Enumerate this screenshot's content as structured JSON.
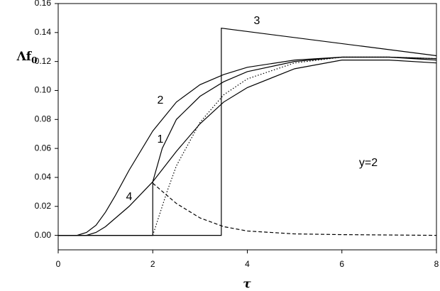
{
  "chart_data": {
    "type": "line",
    "xlabel": "τ",
    "ylabel": "Λf",
    "ylabel_sub": "0",
    "annotation": "y=2",
    "xlim": [
      0,
      8
    ],
    "ylim": [
      -0.01,
      0.16
    ],
    "xticks": [
      0,
      2,
      4,
      6,
      8
    ],
    "yticks": [
      {
        "value": 0,
        "label": "0.00"
      },
      {
        "value": 0.02,
        "label": "0.02"
      },
      {
        "value": 0.04,
        "label": "0.04"
      },
      {
        "value": 0.06,
        "label": "0.06"
      },
      {
        "value": 0.08,
        "label": "0.08"
      },
      {
        "value": 0.1,
        "label": "0.10"
      },
      {
        "value": 0.12,
        "label": "0.12"
      },
      {
        "value": 0.14,
        "label": "0.14"
      },
      {
        "value": 0.16,
        "label": "0.16"
      }
    ],
    "series": [
      {
        "name": "1",
        "color": "#000000",
        "dash": "solid",
        "x": [
          0,
          2,
          2,
          2.2,
          2.5,
          3,
          3.5,
          4,
          5,
          6,
          7,
          8
        ],
        "values": [
          0,
          0,
          0.037,
          0.06,
          0.08,
          0.096,
          0.106,
          0.113,
          0.12,
          0.123,
          0.123,
          0.122
        ]
      },
      {
        "name": "2",
        "color": "#000000",
        "dash": "solid",
        "x": [
          0,
          0.4,
          0.6,
          0.8,
          1.0,
          1.2,
          1.5,
          2,
          2.5,
          3,
          3.5,
          4,
          5,
          6,
          7,
          8
        ],
        "values": [
          0,
          0,
          0.002,
          0.007,
          0.016,
          0.027,
          0.045,
          0.072,
          0.092,
          0.104,
          0.111,
          0.116,
          0.121,
          0.123,
          0.123,
          0.121
        ]
      },
      {
        "name": "3",
        "color": "#000000",
        "dash": "solid",
        "x": [
          0,
          3.45,
          3.45,
          8
        ],
        "values": [
          0,
          0,
          0.143,
          0.124
        ]
      },
      {
        "name": "4",
        "color": "#000000",
        "dash": "solid",
        "x": [
          0,
          0.6,
          0.8,
          1.0,
          1.5,
          2,
          2.5,
          3,
          3.5,
          4,
          5,
          6,
          7,
          8
        ],
        "values": [
          0,
          0,
          0.002,
          0.006,
          0.02,
          0.037,
          0.058,
          0.077,
          0.092,
          0.102,
          0.115,
          0.121,
          0.121,
          0.119
        ]
      },
      {
        "color": "#000000",
        "dash": "dotted",
        "x": [
          2,
          2.1,
          2.3,
          2.5,
          3,
          3.5,
          4,
          5,
          6,
          7,
          8
        ],
        "values": [
          0,
          0.01,
          0.03,
          0.048,
          0.078,
          0.097,
          0.108,
          0.119,
          0.123,
          0.123,
          0.122
        ]
      },
      {
        "color": "#000000",
        "dash": "dashed",
        "x": [
          2,
          2.5,
          3,
          3.5,
          4,
          5,
          6,
          8
        ],
        "values": [
          0.036,
          0.022,
          0.012,
          0.006,
          0.003,
          0.001,
          0.0005,
          0
        ]
      }
    ]
  }
}
